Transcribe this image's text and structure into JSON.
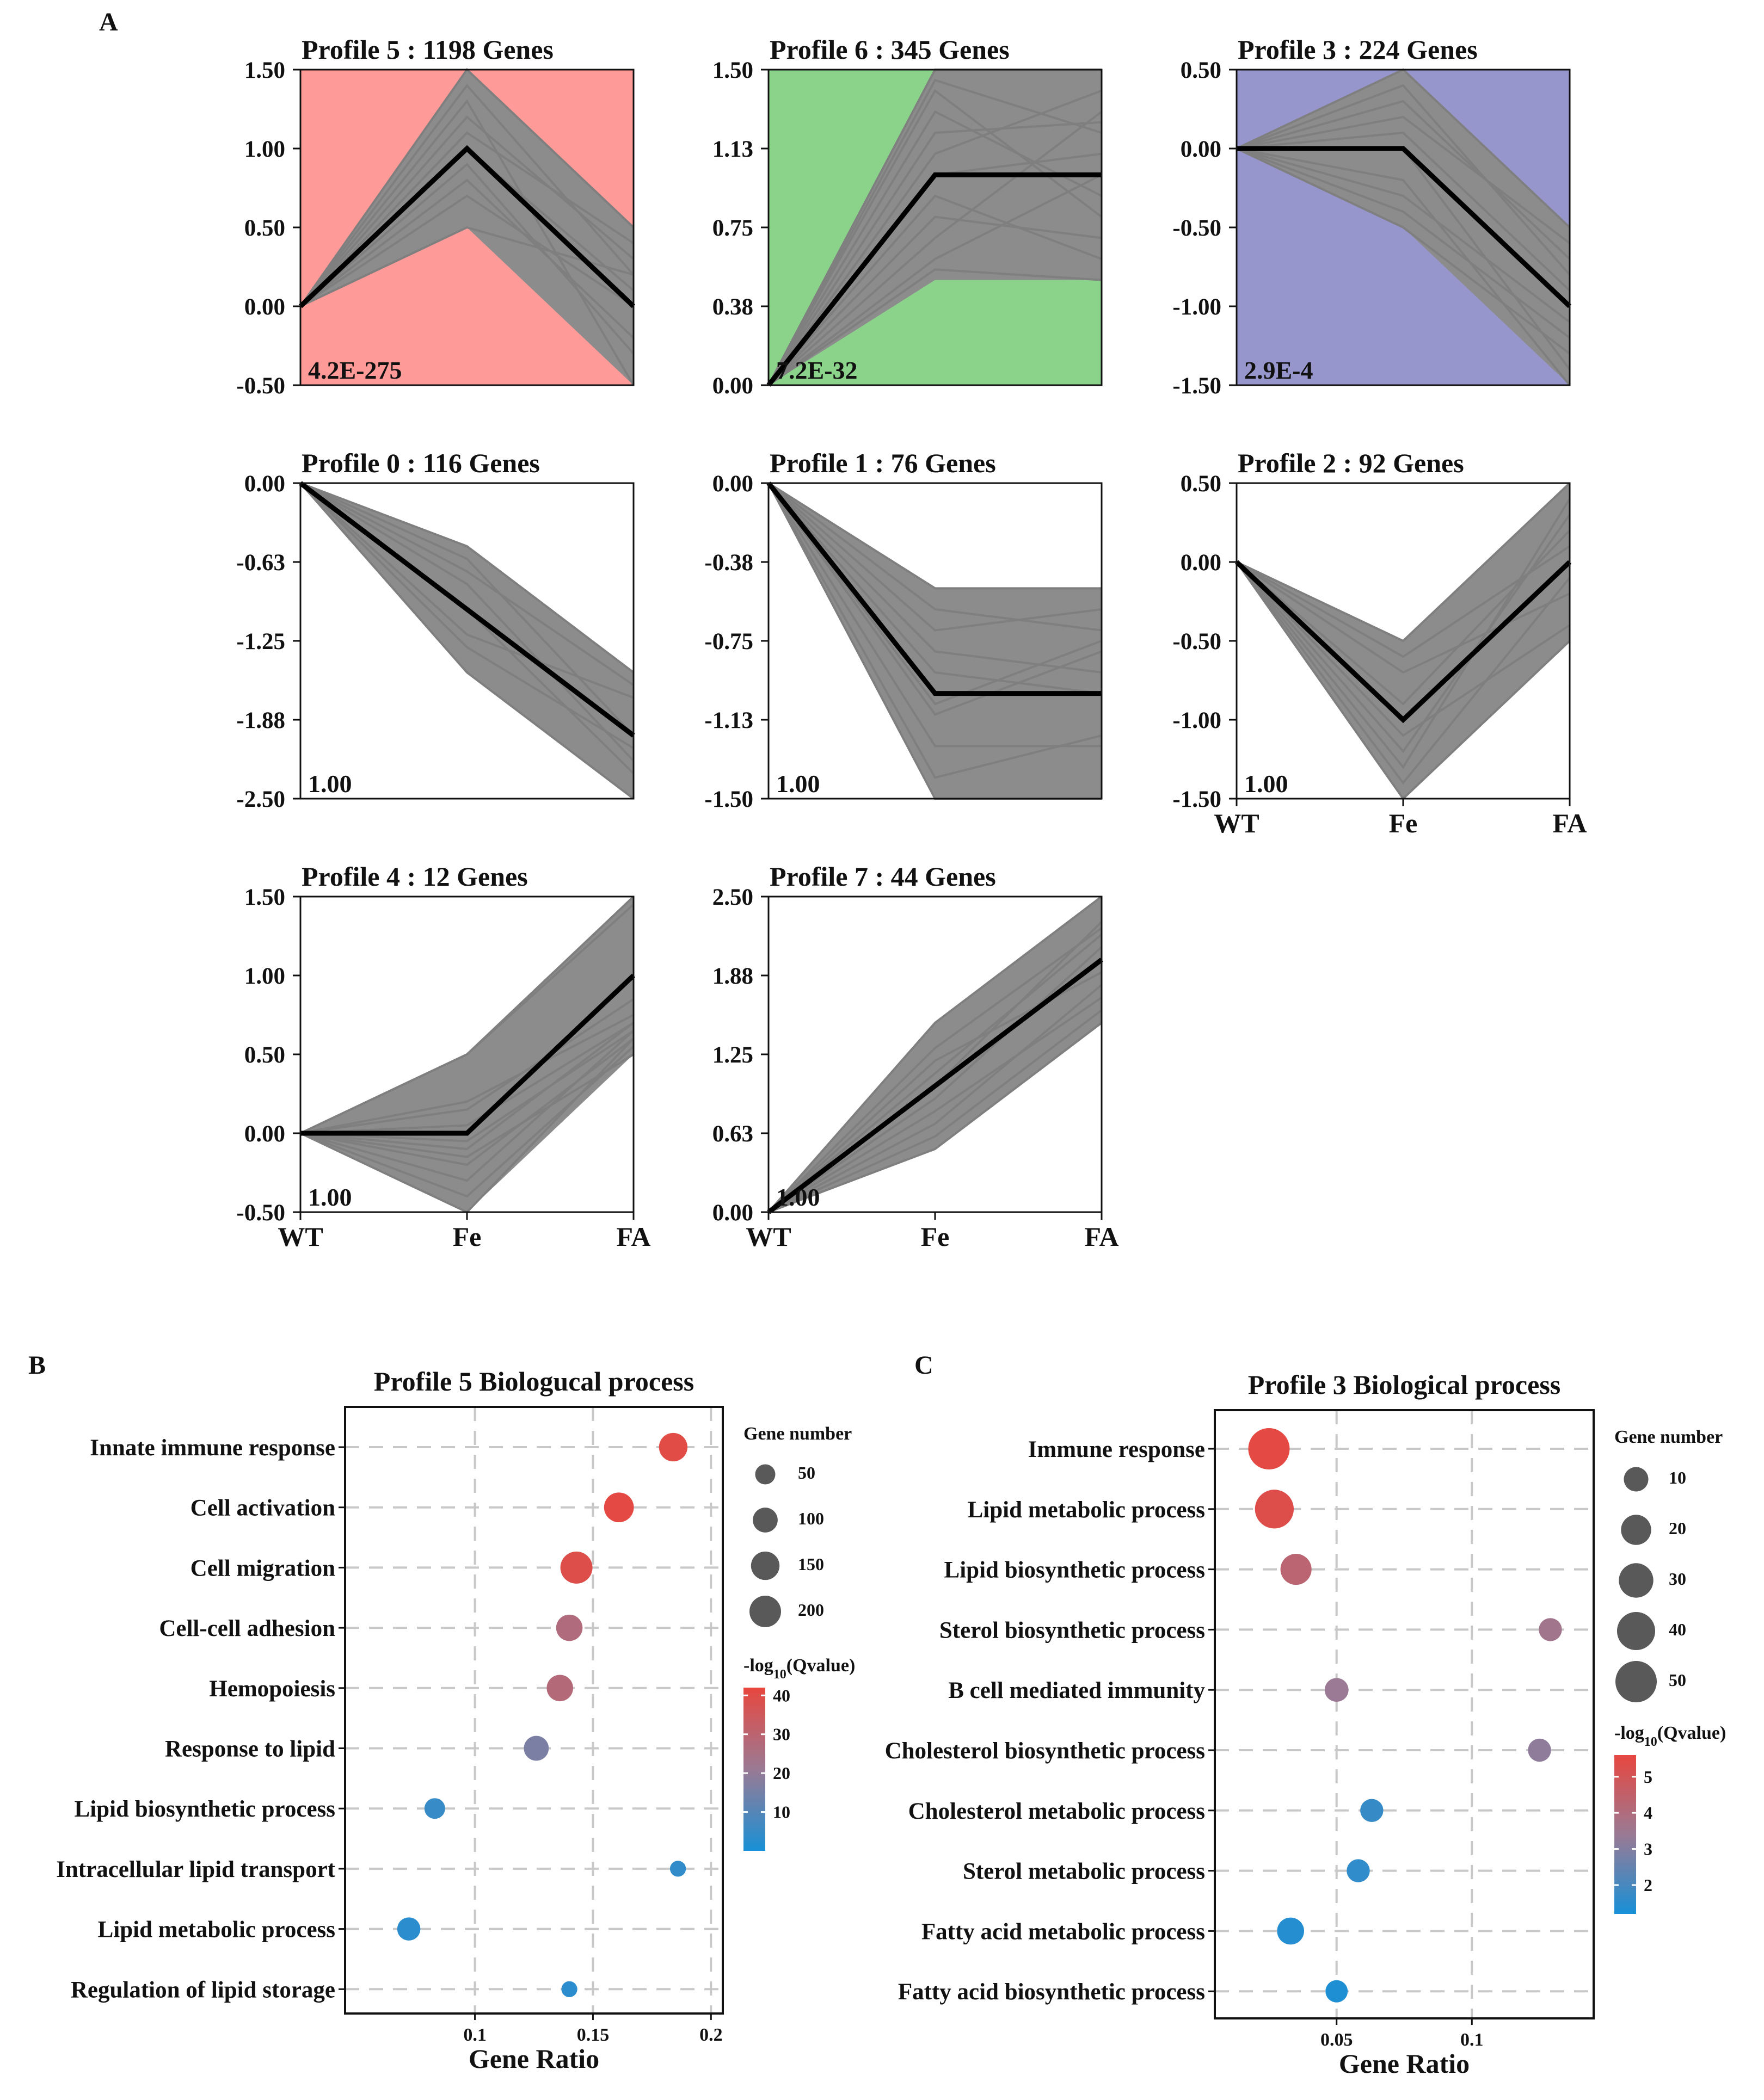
{
  "panel_labels": {
    "a": "A",
    "b": "B",
    "c": "C"
  },
  "chart_data": [
    {
      "type": "line",
      "title": "Profile 5 : 1198 Genes",
      "pvalue": "4.2E-275",
      "background": "#fe9a97",
      "x": [
        "WT",
        "Fe",
        "FA"
      ],
      "ylim": [
        -0.5,
        1.5
      ],
      "yticks": [
        "1.50",
        "1.00",
        "0.50",
        "0.00",
        "-0.50"
      ],
      "model": [
        0,
        1,
        0
      ],
      "fe_range": [
        0.5,
        1.5
      ],
      "fa_range": [
        -0.5,
        0.5
      ],
      "gene_lines": [
        [
          0,
          1.5,
          0.5
        ],
        [
          0,
          1.2,
          0.3
        ],
        [
          0,
          0.5,
          0.2
        ],
        [
          0,
          1.3,
          -0.5
        ],
        [
          0,
          1.0,
          0.1
        ],
        [
          0,
          0.8,
          -0.2
        ],
        [
          0,
          1.1,
          0.4
        ],
        [
          0,
          0.7,
          0.0
        ],
        [
          0,
          1.4,
          0.2
        ],
        [
          0,
          0.9,
          -0.3
        ]
      ]
    },
    {
      "type": "line",
      "title": "Profile 6 : 345 Genes",
      "pvalue": "7.2E-32",
      "background": "#8bd38b",
      "x": [
        "WT",
        "Fe",
        "FA"
      ],
      "ylim": [
        0,
        1.5
      ],
      "yticks": [
        "1.50",
        "1.13",
        "0.75",
        "0.38",
        "0.00"
      ],
      "model": [
        0,
        1,
        1
      ],
      "fe_range": [
        0.5,
        1.5
      ],
      "fa_range": [
        0.5,
        1.5
      ],
      "gene_lines": [
        [
          0,
          1.5,
          1.5
        ],
        [
          0,
          1.45,
          1.2
        ],
        [
          0,
          1.3,
          0.9
        ],
        [
          0,
          1.1,
          1.4
        ],
        [
          0,
          0.7,
          1.3
        ],
        [
          0,
          0.55,
          0.5
        ],
        [
          0,
          0.8,
          0.7
        ],
        [
          0,
          1.0,
          1.1
        ],
        [
          0,
          1.4,
          0.8
        ],
        [
          0,
          0.6,
          1.0
        ],
        [
          0,
          1.2,
          1.25
        ],
        [
          0,
          0.9,
          0.6
        ]
      ]
    },
    {
      "type": "line",
      "title": "Profile 3 : 224 Genes",
      "pvalue": "2.9E-4",
      "background": "#9696cc",
      "x": [
        "WT",
        "Fe",
        "FA"
      ],
      "ylim": [
        -1.5,
        0.5
      ],
      "yticks": [
        "0.50",
        "0.00",
        "-0.50",
        "-1.00",
        "-1.50"
      ],
      "model": [
        0,
        0,
        -1
      ],
      "fe_range": [
        -0.5,
        0.5
      ],
      "fa_range": [
        -1.5,
        -0.5
      ],
      "gene_lines": [
        [
          0,
          0.5,
          -0.5
        ],
        [
          0,
          0.2,
          -0.6
        ],
        [
          0,
          -0.2,
          -1.5
        ],
        [
          0,
          -0.5,
          -1.3
        ],
        [
          0,
          0.3,
          -0.7
        ],
        [
          0,
          0.1,
          -0.9
        ],
        [
          0,
          -0.3,
          -1.1
        ],
        [
          0,
          0.4,
          -0.8
        ],
        [
          0,
          -0.4,
          -1.2
        ],
        [
          0,
          0.0,
          -1.4
        ]
      ]
    },
    {
      "type": "line",
      "title": "Profile 0 : 116 Genes",
      "pvalue": "1.00",
      "background": "#ffffff",
      "x": [
        "WT",
        "Fe",
        "FA"
      ],
      "ylim": [
        -2.5,
        0
      ],
      "yticks": [
        "0.00",
        "-0.63",
        "-1.25",
        "-1.88",
        "-2.50"
      ],
      "model": [
        0,
        -1,
        -2
      ],
      "fe_range": [
        -1.5,
        -0.5
      ],
      "fa_range": [
        -2.5,
        -1.5
      ],
      "gene_lines": [
        [
          0,
          -0.5,
          -1.5
        ],
        [
          0,
          -1.5,
          -2.5
        ],
        [
          0,
          -0.8,
          -2.2
        ],
        [
          0,
          -1.2,
          -1.7
        ],
        [
          0,
          -0.6,
          -2.0
        ],
        [
          0,
          -1.0,
          -2.3
        ],
        [
          0,
          -0.7,
          -1.6
        ],
        [
          0,
          -1.3,
          -2.1
        ]
      ]
    },
    {
      "type": "line",
      "title": "Profile 1 : 76 Genes",
      "pvalue": "1.00",
      "background": "#ffffff",
      "x": [
        "WT",
        "Fe",
        "FA"
      ],
      "ylim": [
        -1.5,
        0
      ],
      "yticks": [
        "0.00",
        "-0.38",
        "-0.75",
        "-1.13",
        "-1.50"
      ],
      "model": [
        0,
        -1,
        -1
      ],
      "fe_range": [
        -1.5,
        -0.5
      ],
      "fa_range": [
        -1.5,
        -0.5
      ],
      "gene_lines": [
        [
          0,
          -0.5,
          -0.5
        ],
        [
          0,
          -1.5,
          -1.5
        ],
        [
          0,
          -1.4,
          -1.2
        ],
        [
          0,
          -1.25,
          -1.25
        ],
        [
          0,
          -0.7,
          -0.6
        ],
        [
          0,
          -0.8,
          -0.9
        ],
        [
          0,
          -1.1,
          -0.8
        ],
        [
          0,
          -0.6,
          -0.7
        ],
        [
          0,
          -0.9,
          -1.0
        ],
        [
          0,
          -1.05,
          -0.75
        ]
      ]
    },
    {
      "type": "line",
      "title": "Profile 2 : 92 Genes",
      "pvalue": "1.00",
      "background": "#ffffff",
      "x": [
        "WT",
        "Fe",
        "FA"
      ],
      "ylim": [
        -1.5,
        0.5
      ],
      "yticks": [
        "0.50",
        "0.00",
        "-0.50",
        "-1.00",
        "-1.50"
      ],
      "model": [
        0,
        -1,
        0
      ],
      "fe_range": [
        -1.5,
        -0.5
      ],
      "fa_range": [
        -0.5,
        0.5
      ],
      "gene_lines": [
        [
          0,
          -0.5,
          0.5
        ],
        [
          0,
          -1.5,
          -0.5
        ],
        [
          0,
          -1.2,
          0.3
        ],
        [
          0,
          -0.7,
          -0.2
        ],
        [
          0,
          -1.4,
          -0.1
        ],
        [
          0,
          -0.9,
          0.2
        ],
        [
          0,
          -1.1,
          -0.4
        ],
        [
          0,
          -0.6,
          0.1
        ],
        [
          0,
          -1.3,
          0.4
        ]
      ]
    },
    {
      "type": "line",
      "title": "Profile 4 : 12 Genes",
      "pvalue": "1.00",
      "background": "#ffffff",
      "x": [
        "WT",
        "Fe",
        "FA"
      ],
      "ylim": [
        -0.5,
        1.5
      ],
      "yticks": [
        "1.50",
        "1.00",
        "0.50",
        "0.00",
        "-0.50"
      ],
      "model": [
        0,
        0,
        1
      ],
      "fe_range": [
        -0.5,
        0.5
      ],
      "fa_range": [
        0.5,
        1.5
      ],
      "gene_lines": [
        [
          0,
          0.5,
          1.5
        ],
        [
          0,
          0.5,
          1.45
        ],
        [
          0,
          0.2,
          0.75
        ],
        [
          0,
          0.15,
          0.85
        ],
        [
          0,
          -0.1,
          0.7
        ],
        [
          0,
          -0.2,
          0.6
        ],
        [
          0,
          -0.3,
          0.65
        ],
        [
          0,
          -0.4,
          0.55
        ],
        [
          0,
          -0.5,
          0.6
        ],
        [
          0,
          -0.15,
          0.5
        ],
        [
          0,
          0.05,
          0.7
        ],
        [
          0,
          -0.05,
          0.65
        ]
      ]
    },
    {
      "type": "line",
      "title": "Profile 7 : 44 Genes",
      "pvalue": "1.00",
      "background": "#ffffff",
      "x": [
        "WT",
        "Fe",
        "FA"
      ],
      "ylim": [
        0,
        2.5
      ],
      "yticks": [
        "2.50",
        "1.88",
        "1.25",
        "0.63",
        "0.00"
      ],
      "model": [
        0,
        1,
        2
      ],
      "fe_range": [
        0.5,
        1.5
      ],
      "fa_range": [
        1.5,
        2.5
      ],
      "gene_lines": [
        [
          0,
          1.5,
          2.5
        ],
        [
          0,
          0.5,
          1.5
        ],
        [
          0,
          1.3,
          2.25
        ],
        [
          0,
          0.8,
          1.7
        ],
        [
          0,
          1.1,
          2.2
        ],
        [
          0,
          0.6,
          1.6
        ],
        [
          0,
          1.2,
          1.9
        ],
        [
          0,
          0.9,
          2.1
        ],
        [
          0,
          0.7,
          1.8
        ],
        [
          0,
          1.0,
          2.3
        ]
      ]
    },
    {
      "type": "scatter",
      "title": "Profile 5 Biologucal process",
      "xlabel": "Gene Ratio",
      "xlim": [
        0.045,
        0.205
      ],
      "xticks": [
        0.1,
        0.15,
        0.2
      ],
      "xtick_labels": [
        "0.1",
        "0.15",
        "0.2"
      ],
      "categories": [
        "Innate immune response",
        "Cell activation",
        "Cell migration",
        "Cell-cell adhesion",
        "Hemopoiesis",
        "Response to lipid",
        "Lipid biosynthetic process",
        "Intracellular lipid transport",
        "Lipid metabolic process",
        "Regulation of lipid storage"
      ],
      "gene_ratio": [
        0.184,
        0.161,
        0.143,
        0.14,
        0.136,
        0.126,
        0.083,
        0.186,
        0.072,
        0.14
      ],
      "gene_number": [
        150,
        170,
        210,
        120,
        120,
        100,
        55,
        20,
        80,
        20
      ],
      "neglog10_q": [
        40,
        41,
        39,
        27,
        28,
        16,
        5,
        4,
        3,
        3
      ],
      "size_legend": {
        "title": "Gene number",
        "values": [
          50,
          100,
          150,
          200
        ],
        "labels": [
          "50",
          "100",
          "150",
          "200"
        ]
      },
      "color_legend": {
        "title_prefix": "-log",
        "title_sub": "10",
        "title_suffix": "(Qvalue)",
        "range": [
          0,
          42
        ],
        "ticks": [
          40,
          30,
          20,
          10
        ],
        "tick_labels": [
          "40",
          "30",
          "20",
          "10"
        ]
      }
    },
    {
      "type": "scatter",
      "title": "Profile 3 Biological process",
      "xlabel": "Gene Ratio",
      "xlim": [
        0.005,
        0.145
      ],
      "xticks": [
        0.05,
        0.1
      ],
      "xtick_labels": [
        "0.05",
        "0.1"
      ],
      "categories": [
        "Immune response",
        "Lipid metabolic process",
        "Lipid biosynthetic process",
        "Sterol biosynthetic process",
        "B cell mediated immunity",
        "Cholesterol biosynthetic process",
        "Cholesterol metabolic process",
        "Sterol metabolic process",
        "Fatty acid metabolic process",
        "Fatty acid biosynthetic process"
      ],
      "gene_ratio": [
        0.025,
        0.027,
        0.035,
        0.129,
        0.05,
        0.125,
        0.063,
        0.058,
        0.033,
        0.05
      ],
      "gene_number": [
        50,
        42,
        22,
        8,
        9,
        8,
        8,
        8,
        14,
        7
      ],
      "neglog10_q": [
        5.5,
        5.3,
        4.3,
        3.6,
        3.4,
        3.2,
        1.7,
        1.6,
        1.4,
        1.3
      ],
      "size_legend": {
        "title": "Gene number",
        "values": [
          10,
          20,
          30,
          40,
          50
        ],
        "labels": [
          "10",
          "20",
          "30",
          "40",
          "50"
        ]
      },
      "color_legend": {
        "title_prefix": "-log",
        "title_sub": "10",
        "title_suffix": "(Qvalue)",
        "range": [
          1.2,
          5.6
        ],
        "ticks": [
          5,
          4,
          3,
          2
        ],
        "tick_labels": [
          "5",
          "4",
          "3",
          "2"
        ]
      }
    }
  ]
}
